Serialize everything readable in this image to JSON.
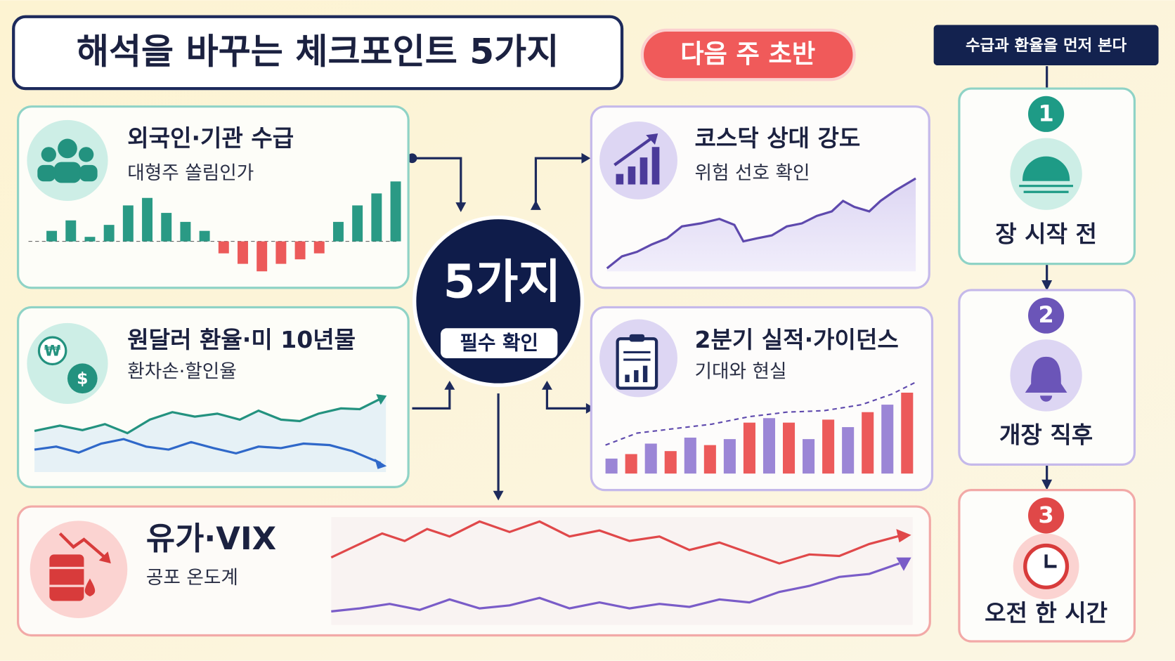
{
  "header": {
    "title": "해석을 바꾸는 체크포인트 5가지",
    "badge": "다음 주 초반"
  },
  "center": {
    "title": "5가지",
    "subtitle": "필수 확인"
  },
  "cards": [
    {
      "title": "외국인·기관 수급",
      "subtitle": "대형주 쏠림인가"
    },
    {
      "title": "코스닥 상대 강도",
      "subtitle": "위험 선호 확인"
    },
    {
      "title": "원달러 환율·미 10년물",
      "subtitle": "환차손·할인율"
    },
    {
      "title": "2분기 실적·가이던스",
      "subtitle": "기대와 현실"
    },
    {
      "title": "유가·VIX",
      "subtitle": "공포 온도계"
    }
  ],
  "timeline": {
    "header": "수급과 환율을 먼저 본다",
    "steps": [
      {
        "number": "1",
        "label": "장 시작 전"
      },
      {
        "number": "2",
        "label": "개장 직후"
      },
      {
        "number": "3",
        "label": "오전 한 시간"
      }
    ]
  }
}
